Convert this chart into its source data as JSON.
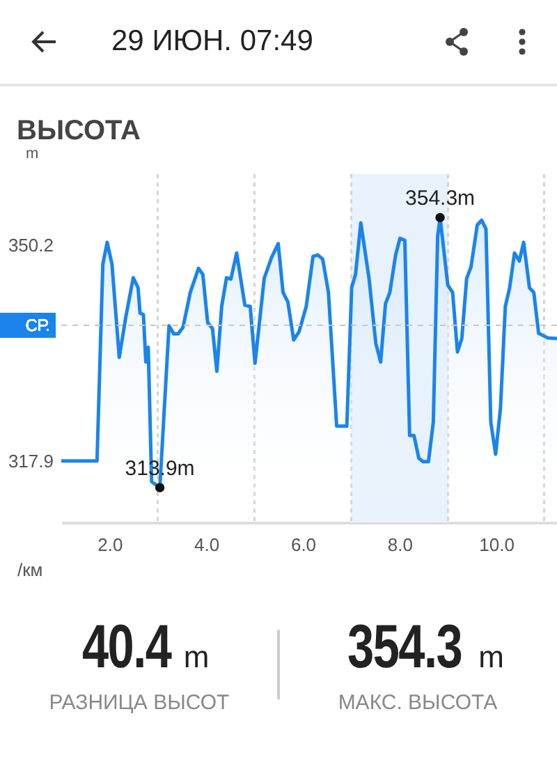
{
  "chart_data": {
    "type": "area",
    "title": "ВЫСОТА",
    "xlabel": "/км",
    "ylabel": "m",
    "x": [
      1.0,
      1.74,
      1.86,
      1.95,
      2.05,
      2.2,
      2.34,
      2.49,
      2.59,
      2.63,
      2.7,
      2.75,
      2.8,
      2.87,
      3.04,
      3.23,
      3.33,
      3.42,
      3.52,
      3.67,
      3.84,
      3.93,
      4.03,
      4.13,
      4.22,
      4.32,
      4.42,
      4.51,
      4.63,
      4.8,
      4.91,
      5.01,
      5.2,
      5.35,
      5.49,
      5.59,
      5.69,
      5.81,
      5.92,
      6.07,
      6.21,
      6.31,
      6.41,
      6.53,
      6.7,
      6.91,
      7.01,
      7.09,
      7.2,
      7.37,
      7.51,
      7.61,
      7.71,
      7.8,
      7.92,
      8.01,
      8.11,
      8.21,
      8.3,
      8.4,
      8.49,
      8.6,
      8.7,
      8.79,
      8.84,
      9.0,
      9.1,
      9.2,
      9.29,
      9.39,
      9.48,
      9.61,
      9.7,
      9.79,
      9.89,
      9.99,
      10.09,
      10.19,
      10.28,
      10.38,
      10.48,
      10.57,
      10.69,
      10.78,
      10.88,
      11.07,
      11.26
    ],
    "series": [
      {
        "color": "#1a84ec",
        "values": [
          317.9,
          317.9,
          347.3,
          350.6,
          347.3,
          333.4,
          339.6,
          345.3,
          343.8,
          340.0,
          339.8,
          332.7,
          334.9,
          314.8,
          313.9,
          338.1,
          336.9,
          336.9,
          337.9,
          343.1,
          346.7,
          345.8,
          338.6,
          337.7,
          331.3,
          341.0,
          345.3,
          345.1,
          349.0,
          341.2,
          341.0,
          332.5,
          345.2,
          348.3,
          350.4,
          343.1,
          341.7,
          336.0,
          337.2,
          341.0,
          348.5,
          348.7,
          348.1,
          343.1,
          323.1,
          323.1,
          343.8,
          345.8,
          353.5,
          345.2,
          335.5,
          332.7,
          341.4,
          343.1,
          348.7,
          351.2,
          350.9,
          321.7,
          321.7,
          318.3,
          317.8,
          317.8,
          323.7,
          351.5,
          354.3,
          344.2,
          343.1,
          334.2,
          336.2,
          345.2,
          346.9,
          353.2,
          353.9,
          352.6,
          323.7,
          318.9,
          325.8,
          341.0,
          343.8,
          349.0,
          347.8,
          350.6,
          343.8,
          343.1,
          337.0,
          336.3,
          336.2
        ]
      }
    ],
    "xlim": [
      1.0,
      11.26
    ],
    "xticks": [
      {
        "value": 2,
        "label": "2.0"
      },
      {
        "value": 3,
        "label": null
      },
      {
        "value": 4,
        "label": "4.0"
      },
      {
        "value": 5,
        "label": null
      },
      {
        "value": 6,
        "label": "6.0"
      },
      {
        "value": 7,
        "label": null
      },
      {
        "value": 8,
        "label": "8.0"
      },
      {
        "value": 9,
        "label": null
      },
      {
        "value": 10,
        "label": "10.0"
      },
      {
        "value": 11,
        "label": null
      }
    ],
    "ylim": [
      308.7,
      360.8
    ],
    "yticks": [
      317.9,
      350.2
    ],
    "grid": "x",
    "ref_lines": [
      {
        "axis": "y",
        "value": 338.2,
        "label": "СР.",
        "color": "#c8c8c8",
        "line_style": "dashed"
      }
    ],
    "bands": [
      {
        "axis": "x",
        "from": 7,
        "to": 9,
        "color": "#e8f2fc"
      }
    ],
    "annotations": [
      "29 ИЮН. 07:49",
      {
        "text": "313.9m",
        "x": 3.04,
        "y": 313.9
      },
      {
        "text": "354.3m",
        "x": 8.84,
        "y": 354.3
      },
      "40.4 m",
      "РАЗНИЦА ВЫСОТ",
      "354.3 m",
      "МАКС. ВЫСОТА"
    ]
  }
}
